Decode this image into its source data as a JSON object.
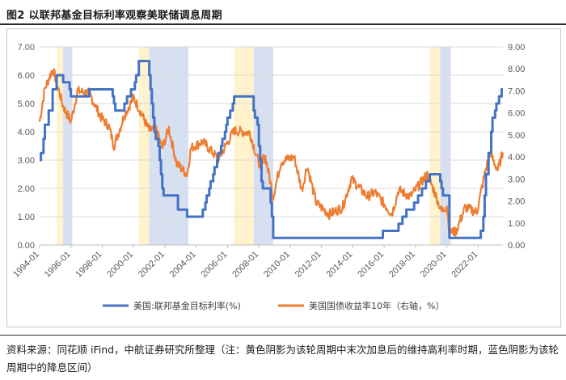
{
  "figure": {
    "title": "图2  以联邦基金目标利率观察美联储调息周期",
    "footnote": "资料来源：同花顺 iFind，中航证券研究所整理（注：黄色阴影为该轮周期中末次加息后的维持高利率时期，蓝色阴影为该轮周期中的降息区间）"
  },
  "chart_data": {
    "type": "line",
    "title": "",
    "x_ticks": [
      "1994-01",
      "1996-01",
      "1998-01",
      "2000-01",
      "2002-01",
      "2004-01",
      "2006-01",
      "2008-01",
      "2010-01",
      "2012-01",
      "2014-01",
      "2016-01",
      "2018-01",
      "2020-01",
      "2022-01"
    ],
    "xlim": [
      "1994-01",
      "2023-08"
    ],
    "y_left": {
      "ylim": [
        0,
        7
      ],
      "ticks": [
        "0.00",
        "1.00",
        "2.00",
        "3.00",
        "4.00",
        "5.00",
        "6.00",
        "7.00"
      ]
    },
    "y_right": {
      "ylim": [
        0,
        9
      ],
      "ticks": [
        "0.00",
        "1.00",
        "2.00",
        "3.00",
        "4.00",
        "5.00",
        "6.00",
        "7.00",
        "8.00",
        "9.00"
      ]
    },
    "grid": "horizontal",
    "legend": "bottom",
    "shading": {
      "yellow": [
        [
          "1995-02",
          "1995-07"
        ],
        [
          "2000-05",
          "2001-01"
        ],
        [
          "2006-06",
          "2007-09"
        ],
        [
          "2018-12",
          "2019-08"
        ]
      ],
      "blue": [
        [
          "1995-07",
          "1996-02"
        ],
        [
          "2001-01",
          "2003-07"
        ],
        [
          "2007-09",
          "2008-12"
        ],
        [
          "2019-08",
          "2020-04"
        ]
      ]
    },
    "colors": {
      "yellow": "#fff2cc",
      "blue": "#d6e0f1",
      "fed": "#4472c4",
      "yield": "#ed7d31"
    },
    "series": [
      {
        "name": "美国:联邦基金目标利率(%)",
        "axis": "left",
        "points": [
          [
            "1994-01",
            3.0
          ],
          [
            "1994-02",
            3.25
          ],
          [
            "1994-04",
            3.75
          ],
          [
            "1994-05",
            4.25
          ],
          [
            "1994-08",
            4.75
          ],
          [
            "1994-11",
            5.5
          ],
          [
            "1995-02",
            6.0
          ],
          [
            "1995-07",
            5.75
          ],
          [
            "1995-12",
            5.5
          ],
          [
            "1996-01",
            5.25
          ],
          [
            "1997-03",
            5.5
          ],
          [
            "1998-09",
            5.25
          ],
          [
            "1998-10",
            5.0
          ],
          [
            "1998-11",
            4.75
          ],
          [
            "1999-06",
            5.0
          ],
          [
            "1999-08",
            5.25
          ],
          [
            "1999-11",
            5.5
          ],
          [
            "2000-02",
            5.75
          ],
          [
            "2000-03",
            6.0
          ],
          [
            "2000-05",
            6.5
          ],
          [
            "2001-01",
            6.0
          ],
          [
            "2001-02",
            5.5
          ],
          [
            "2001-03",
            5.0
          ],
          [
            "2001-04",
            4.5
          ],
          [
            "2001-05",
            4.0
          ],
          [
            "2001-06",
            3.75
          ],
          [
            "2001-08",
            3.5
          ],
          [
            "2001-09",
            3.0
          ],
          [
            "2001-10",
            2.5
          ],
          [
            "2001-11",
            2.0
          ],
          [
            "2001-12",
            1.75
          ],
          [
            "2002-11",
            1.25
          ],
          [
            "2003-06",
            1.0
          ],
          [
            "2004-06",
            1.25
          ],
          [
            "2004-08",
            1.5
          ],
          [
            "2004-09",
            1.75
          ],
          [
            "2004-11",
            2.0
          ],
          [
            "2004-12",
            2.25
          ],
          [
            "2005-02",
            2.5
          ],
          [
            "2005-03",
            2.75
          ],
          [
            "2005-05",
            3.0
          ],
          [
            "2005-06",
            3.25
          ],
          [
            "2005-08",
            3.5
          ],
          [
            "2005-09",
            3.75
          ],
          [
            "2005-11",
            4.0
          ],
          [
            "2005-12",
            4.25
          ],
          [
            "2006-01",
            4.5
          ],
          [
            "2006-03",
            4.75
          ],
          [
            "2006-05",
            5.0
          ],
          [
            "2006-06",
            5.25
          ],
          [
            "2007-09",
            4.75
          ],
          [
            "2007-10",
            4.5
          ],
          [
            "2007-12",
            4.25
          ],
          [
            "2008-01",
            3.5
          ],
          [
            "2008-02",
            3.0
          ],
          [
            "2008-03",
            2.25
          ],
          [
            "2008-04",
            2.0
          ],
          [
            "2008-10",
            1.5
          ],
          [
            "2008-11",
            1.0
          ],
          [
            "2008-12",
            0.25
          ],
          [
            "2015-12",
            0.5
          ],
          [
            "2016-12",
            0.75
          ],
          [
            "2017-03",
            1.0
          ],
          [
            "2017-06",
            1.25
          ],
          [
            "2017-12",
            1.5
          ],
          [
            "2018-03",
            1.75
          ],
          [
            "2018-06",
            2.0
          ],
          [
            "2018-09",
            2.25
          ],
          [
            "2018-12",
            2.5
          ],
          [
            "2019-08",
            2.25
          ],
          [
            "2019-09",
            2.0
          ],
          [
            "2019-10",
            1.75
          ],
          [
            "2020-03",
            0.25
          ],
          [
            "2022-03",
            0.5
          ],
          [
            "2022-05",
            1.0
          ],
          [
            "2022-06",
            1.75
          ],
          [
            "2022-07",
            2.5
          ],
          [
            "2022-09",
            3.25
          ],
          [
            "2022-11",
            4.0
          ],
          [
            "2022-12",
            4.5
          ],
          [
            "2023-02",
            4.75
          ],
          [
            "2023-03",
            5.0
          ],
          [
            "2023-05",
            5.25
          ],
          [
            "2023-07",
            5.5
          ],
          [
            "2023-08",
            5.5
          ]
        ]
      },
      {
        "name": "美国国债收益率10年（右轴，%）",
        "axis": "right",
        "points": [
          [
            "1994-01",
            5.6
          ],
          [
            "1994-05",
            7.1
          ],
          [
            "1994-11",
            8.0
          ],
          [
            "1995-03",
            7.2
          ],
          [
            "1995-07",
            6.3
          ],
          [
            "1996-01",
            5.6
          ],
          [
            "1996-06",
            7.0
          ],
          [
            "1997-03",
            6.9
          ],
          [
            "1997-12",
            5.8
          ],
          [
            "1998-06",
            5.4
          ],
          [
            "1998-10",
            4.5
          ],
          [
            "1999-06",
            5.9
          ],
          [
            "2000-01",
            6.7
          ],
          [
            "2000-06",
            6.1
          ],
          [
            "2001-01",
            5.2
          ],
          [
            "2001-06",
            5.3
          ],
          [
            "2001-11",
            4.4
          ],
          [
            "2002-04",
            5.3
          ],
          [
            "2002-10",
            3.7
          ],
          [
            "2003-06",
            3.2
          ],
          [
            "2003-09",
            4.4
          ],
          [
            "2004-06",
            4.7
          ],
          [
            "2005-06",
            3.9
          ],
          [
            "2006-06",
            5.2
          ],
          [
            "2007-06",
            5.1
          ],
          [
            "2008-01",
            3.7
          ],
          [
            "2008-06",
            4.0
          ],
          [
            "2008-12",
            2.2
          ],
          [
            "2009-06",
            3.8
          ],
          [
            "2010-04",
            4.0
          ],
          [
            "2010-10",
            2.5
          ],
          [
            "2011-02",
            3.6
          ],
          [
            "2011-09",
            1.9
          ],
          [
            "2012-07",
            1.4
          ],
          [
            "2013-05",
            1.7
          ],
          [
            "2013-12",
            3.0
          ],
          [
            "2014-12",
            2.2
          ],
          [
            "2015-06",
            2.4
          ],
          [
            "2016-07",
            1.4
          ],
          [
            "2016-12",
            2.5
          ],
          [
            "2017-09",
            2.2
          ],
          [
            "2018-10",
            3.2
          ],
          [
            "2019-03",
            2.5
          ],
          [
            "2019-09",
            1.5
          ],
          [
            "2020-01",
            1.8
          ],
          [
            "2020-03",
            0.6
          ],
          [
            "2020-08",
            0.6
          ],
          [
            "2021-03",
            1.7
          ],
          [
            "2021-12",
            1.5
          ],
          [
            "2022-06",
            3.2
          ],
          [
            "2022-10",
            4.2
          ],
          [
            "2023-04",
            3.4
          ],
          [
            "2023-08",
            4.2
          ]
        ]
      }
    ]
  }
}
